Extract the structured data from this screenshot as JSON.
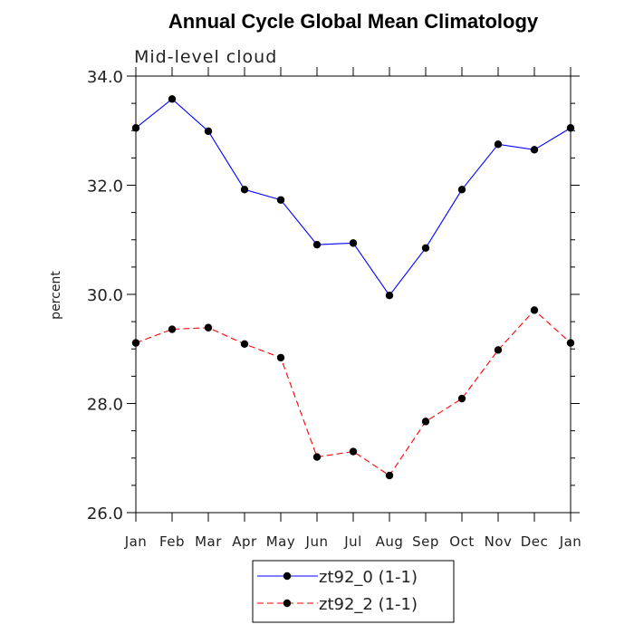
{
  "chart_data": {
    "type": "line",
    "title": "Annual Cycle Global Mean Climatology",
    "subtitle": "Mid-level cloud",
    "xlabel": "",
    "ylabel": "percent",
    "categories": [
      "Jan",
      "Feb",
      "Mar",
      "Apr",
      "May",
      "Jun",
      "Jul",
      "Aug",
      "Sep",
      "Oct",
      "Nov",
      "Dec",
      "Jan"
    ],
    "ylim": [
      26.0,
      34.0
    ],
    "yticks": [
      "26.0",
      "28.0",
      "30.0",
      "32.0",
      "34.0"
    ],
    "yticks_minor_step": 0.5,
    "grid": false,
    "legend_position": "bottom-center",
    "series": [
      {
        "name": "zt92_0 (1-1)",
        "color": "#0000ff",
        "line_style": "solid",
        "marker": "filled-circle",
        "values": [
          33.05,
          33.58,
          32.99,
          31.92,
          31.73,
          30.91,
          30.94,
          29.98,
          30.85,
          31.92,
          32.75,
          32.65,
          33.05
        ]
      },
      {
        "name": "zt92_2 (1-1)",
        "color": "#ff0000",
        "line_style": "dashed",
        "marker": "filled-circle",
        "values": [
          29.11,
          29.36,
          29.39,
          29.09,
          28.84,
          27.02,
          27.12,
          26.68,
          27.67,
          28.09,
          28.98,
          29.71,
          29.11
        ]
      }
    ]
  }
}
